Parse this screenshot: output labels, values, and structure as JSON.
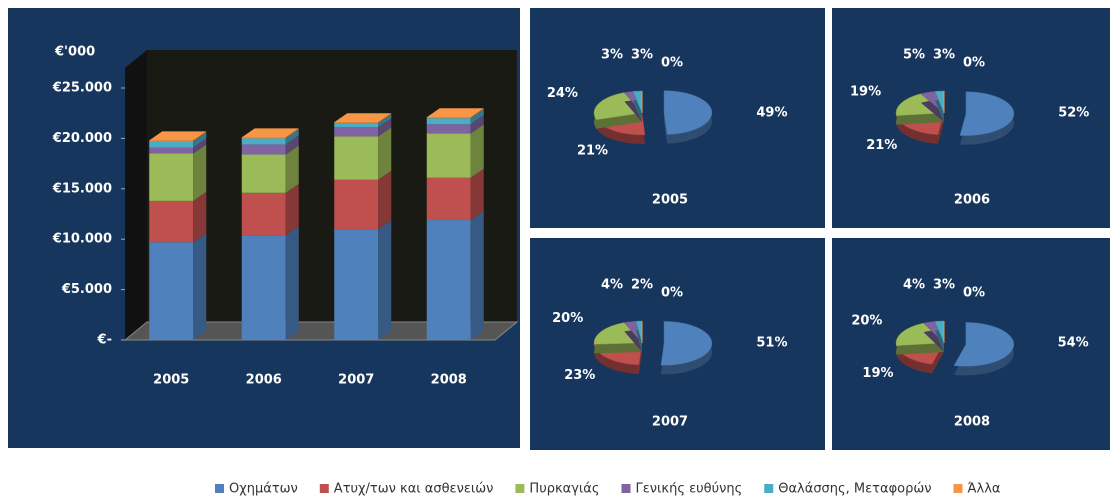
{
  "chart_data": [
    {
      "type": "bar",
      "stacked": true,
      "y_label": "€'000",
      "categories": [
        "2005",
        "2006",
        "2007",
        "2008"
      ],
      "ylim": [
        0,
        25000
      ],
      "yticks": [
        {
          "value": 0,
          "label": "€-"
        },
        {
          "value": 5000,
          "label": "€5.000"
        },
        {
          "value": 10000,
          "label": "€10.000"
        },
        {
          "value": 15000,
          "label": "€15.000"
        },
        {
          "value": 20000,
          "label": "€20.000"
        },
        {
          "value": 25000,
          "label": "€25.000"
        }
      ],
      "legend": "bottom",
      "series": [
        {
          "name": "Οχημάτων",
          "color": "#4f81bd",
          "values": [
            9700,
            10400,
            11000,
            11900
          ]
        },
        {
          "name": "Ατυχ/των και ασθενειών",
          "color": "#c0504d",
          "values": [
            4100,
            4200,
            4900,
            4200
          ]
        },
        {
          "name": "Πυρκαγιάς",
          "color": "#9bbb59",
          "values": [
            4700,
            3800,
            4300,
            4400
          ]
        },
        {
          "name": "Γενικής ευθύνης",
          "color": "#8064a2",
          "values": [
            600,
            1000,
            900,
            900
          ]
        },
        {
          "name": "Θαλάσσης, Μεταφορών",
          "color": "#4bacc6",
          "values": [
            600,
            600,
            400,
            600
          ]
        },
        {
          "name": "Άλλα",
          "color": "#f79646",
          "values": [
            100,
            100,
            100,
            100
          ]
        }
      ]
    },
    {
      "type": "pie",
      "title": "2005",
      "values": [
        49,
        21,
        24,
        3,
        3,
        0
      ],
      "value_labels": [
        "49%",
        "21%",
        "24%",
        "3%",
        "3%",
        "0%"
      ]
    },
    {
      "type": "pie",
      "title": "2006",
      "values": [
        52,
        21,
        19,
        5,
        3,
        0
      ],
      "value_labels": [
        "52%",
        "21%",
        "19%",
        "5%",
        "3%",
        "0%"
      ]
    },
    {
      "type": "pie",
      "title": "2007",
      "values": [
        51,
        23,
        20,
        4,
        2,
        0
      ],
      "value_labels": [
        "51%",
        "23%",
        "20%",
        "4%",
        "2%",
        "0%"
      ]
    },
    {
      "type": "pie",
      "title": "2008",
      "values": [
        54,
        19,
        20,
        4,
        3,
        0
      ],
      "value_labels": [
        "54%",
        "19%",
        "20%",
        "4%",
        "3%",
        "0%"
      ]
    }
  ]
}
